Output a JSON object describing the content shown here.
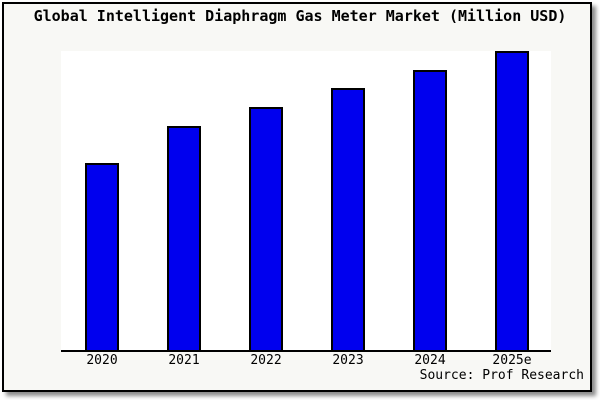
{
  "header": {
    "title": "Global Intelligent Diaphragm Gas Meter Market (Million USD)"
  },
  "source": {
    "text": "Source: Prof Research"
  },
  "colors": {
    "bar_fill": "#0000ee",
    "bar_border": "#000000",
    "frame_background": "#f8f8f5",
    "plot_background": "#ffffff",
    "axis": "#000000",
    "title_text": "#000000"
  },
  "chart_data": {
    "type": "bar",
    "title": "Global Intelligent Diaphragm Gas Meter Market (Million USD)",
    "unit": "Million USD",
    "categories": [
      "2020",
      "2021",
      "2022",
      "2023",
      "2024",
      "2025e"
    ],
    "values": [
      62.5,
      75,
      81.25,
      87.5,
      93.75,
      100
    ],
    "values_note": "percent of tallest bar (2025e); no numeric y-axis scale is shown in the image",
    "relative_ratio": [
      10,
      12,
      13,
      14,
      15,
      16
    ],
    "xlabel": "",
    "ylabel": "",
    "y_axis_labels_visible": false,
    "gridlines": false,
    "legend": false,
    "bar_color": "#0000ee",
    "source": "Source: Prof Research"
  }
}
